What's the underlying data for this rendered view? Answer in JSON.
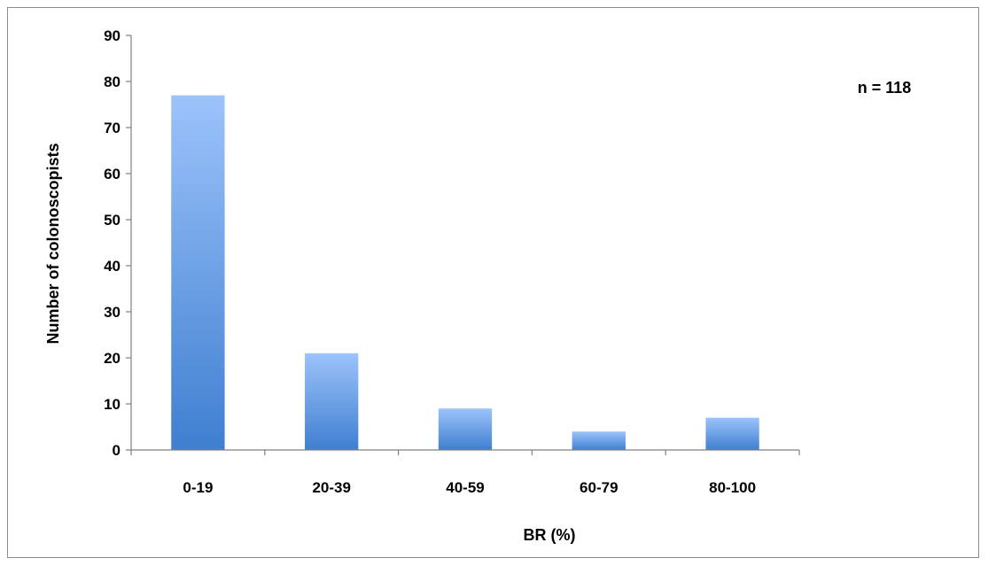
{
  "chart_data": {
    "type": "bar",
    "categories": [
      "0-19",
      "20-39",
      "40-59",
      "60-79",
      "80-100"
    ],
    "values": [
      77,
      21,
      9,
      4,
      7
    ],
    "xlabel": "BR (%)",
    "ylabel": "Number of colonoscopists",
    "ylim": [
      0,
      90
    ],
    "yticks": [
      0,
      10,
      20,
      30,
      40,
      50,
      60,
      70,
      80,
      90
    ],
    "annotation": "n = 118",
    "grid": false,
    "legend": "none",
    "colors": {
      "bar_top": "#9cc3fb",
      "bar_bottom": "#3f7fd0",
      "axis": "#808080"
    }
  }
}
